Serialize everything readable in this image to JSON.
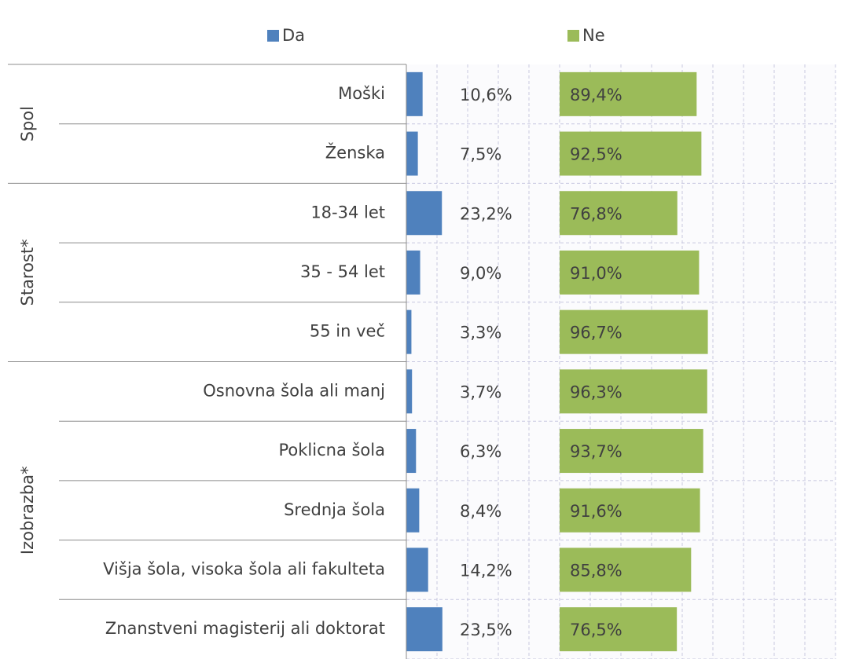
{
  "chart_data": {
    "type": "bar",
    "groups": [
      {
        "name": "Spol",
        "categories": [
          "Moški",
          "Ženska"
        ]
      },
      {
        "name": "Starost*",
        "categories": [
          "18-34 let",
          "35 - 54 let",
          "55 in več"
        ]
      },
      {
        "name": "Izobrazba*",
        "categories": [
          "Osnovna šola ali manj",
          "Poklicna šola",
          "Srednja šola",
          "Višja šola, visoka šola ali fakulteta",
          "Znanstveni magisterij ali doktorat"
        ]
      }
    ],
    "series": [
      {
        "name": "Da",
        "color": "#4f81bd",
        "values": [
          10.6,
          7.5,
          23.2,
          9.0,
          3.3,
          3.7,
          6.3,
          8.4,
          14.2,
          23.5
        ],
        "value_labels": [
          "10,6%",
          "7,5%",
          "23,2%",
          "9,0%",
          "3,3%",
          "3,7%",
          "6,3%",
          "8,4%",
          "14,2%",
          "23,5%"
        ]
      },
      {
        "name": "Ne",
        "color": "#9bbb59",
        "values": [
          89.4,
          92.5,
          76.8,
          91.0,
          96.7,
          96.3,
          93.7,
          91.6,
          85.8,
          76.5
        ],
        "value_labels": [
          "89,4%",
          "92,5%",
          "76,8%",
          "91,0%",
          "96,7%",
          "96,3%",
          "93,7%",
          "91,6%",
          "85,8%",
          "76,5%"
        ]
      }
    ],
    "xlim": [
      0,
      280
    ],
    "xticks": [
      0,
      20,
      40,
      60,
      80,
      100,
      120,
      140,
      160,
      180,
      200,
      220,
      240,
      260,
      280
    ],
    "grid": true
  }
}
